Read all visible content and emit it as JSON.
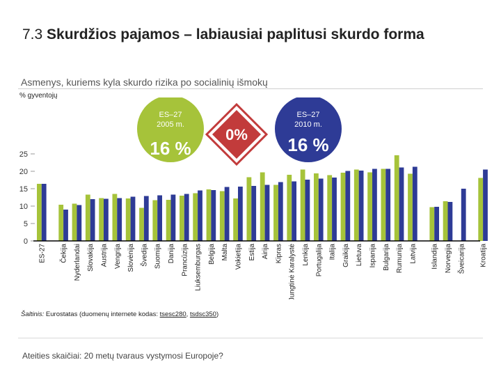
{
  "header": {
    "title_number": "7.3",
    "title_text": "Skurdžios pajamos – labiausiai paplitusi skurdo forma"
  },
  "subtitle": "Asmenys, kuriems kyla skurdo rizika po socialinių išmokų",
  "unit_label": "% gyventojų",
  "badges": {
    "left": {
      "label": "ES–27",
      "year": "2005 m.",
      "value": "16 %"
    },
    "middle": {
      "value": "0%"
    },
    "right": {
      "label": "ES–27",
      "year": "2010 m.",
      "value": "16 %"
    }
  },
  "colors": {
    "bar2005": "#a6c33a",
    "bar2010": "#2e3b96",
    "badge_red": "#c23b3b",
    "axis": "#000000"
  },
  "chart_data": {
    "type": "bar",
    "title": "Asmenys, kuriems kyla skurdo rizika po socialinių išmokų",
    "ylabel": "% gyventojų",
    "ylim": [
      0,
      25
    ],
    "yticks": [
      "0",
      "5",
      "10",
      "15",
      "20",
      "25"
    ],
    "legend": [
      "2005 m.",
      "2010 m."
    ],
    "grid": false,
    "categories": [
      "ES-27",
      "Čekija",
      "Nyderlandai",
      "Slovakija",
      "Austrija",
      "Vengrija",
      "Slovėnija",
      "Švedija",
      "Suomija",
      "Danija",
      "Prancūzija",
      "Liuksemburgas",
      "Belgija",
      "Malta",
      "Vokietija",
      "Estija",
      "Airija",
      "Kipras",
      "Jungtinė Karalystė",
      "Lenkija",
      "Portugalija",
      "Italija",
      "Graikija",
      "Lietuva",
      "Ispanija",
      "Bulgarija",
      "Rumunija",
      "Latvija",
      "Islandija",
      "Norvegija",
      "Šveicarija",
      "Kroatija"
    ],
    "gaps_after": [
      "ES-27",
      "Latvija",
      "Šveicarija"
    ],
    "series": [
      {
        "name": "2005 m.",
        "values": [
          16.4,
          10.4,
          10.7,
          13.3,
          12.3,
          13.5,
          12.2,
          9.5,
          11.7,
          11.8,
          13.0,
          13.7,
          14.8,
          14.3,
          12.2,
          18.3,
          19.7,
          16.1,
          19.0,
          20.5,
          19.4,
          18.9,
          19.6,
          20.5,
          19.7,
          20.7,
          24.6,
          19.3,
          9.7,
          11.4,
          0,
          18.1
        ]
      },
      {
        "name": "2010 m.",
        "values": [
          16.4,
          9.0,
          10.3,
          12.0,
          12.1,
          12.3,
          12.7,
          12.9,
          13.1,
          13.3,
          13.5,
          14.5,
          14.6,
          15.5,
          15.6,
          15.8,
          16.1,
          16.9,
          17.1,
          17.6,
          17.9,
          18.2,
          20.1,
          20.2,
          20.7,
          20.7,
          21.1,
          21.3,
          9.8,
          11.2,
          15.0,
          20.5
        ]
      }
    ]
  },
  "source": {
    "prefix": "Šaltinis:",
    "text": " Eurostatas (duomenų internete kodas: ",
    "link1": "tsesc280",
    "separator": ", ",
    "link2": "tsdsc350",
    "suffix": ")"
  },
  "footer": "Ateities skaičiai: 20 metų tvaraus vystymosi Europoje?"
}
